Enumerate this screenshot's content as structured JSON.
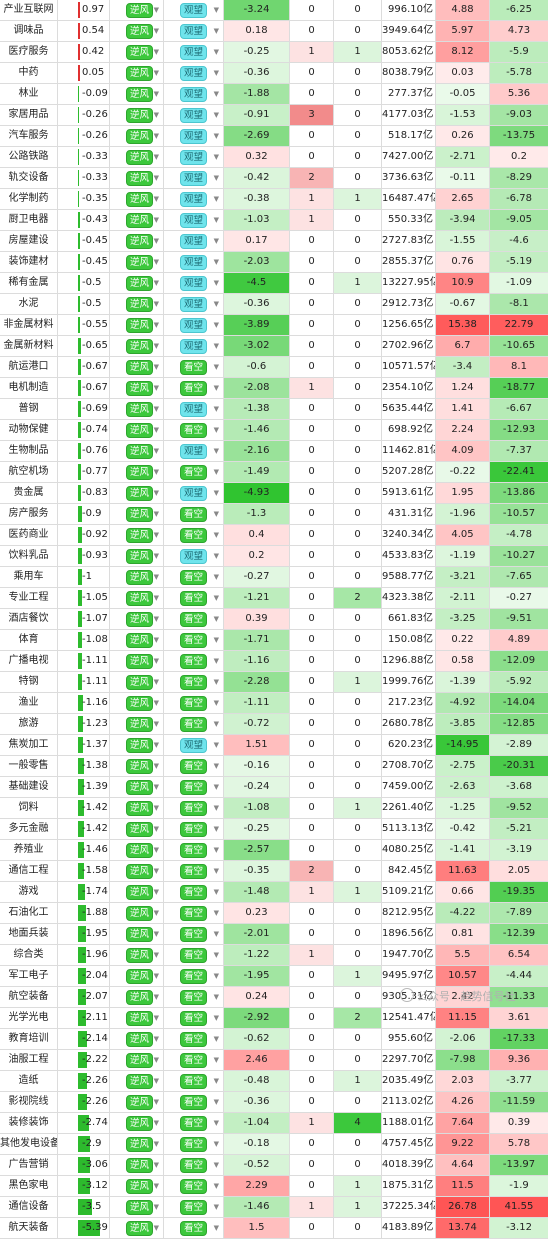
{
  "trend_label": "逆风",
  "sentiment_labels": {
    "wait": "观望",
    "bull": "看空"
  },
  "colors": {
    "up_red": "#f08080",
    "down_green": "#1ec81e",
    "bar_red": "#e03030",
    "bar_green": "#2dbb2d"
  },
  "watermark": "公众号 · 趋势信号社",
  "rows": [
    {
      "name": "产业互联网",
      "chg": "0.97",
      "sent": "wait",
      "net": "-3.24",
      "n1": "0",
      "n2": "0",
      "amt": "996.10亿",
      "p1": "4.88",
      "p2": "-6.25"
    },
    {
      "name": "调味品",
      "chg": "0.54",
      "sent": "wait",
      "net": "0.18",
      "n1": "0",
      "n2": "0",
      "amt": "3949.64亿",
      "p1": "5.97",
      "p2": "4.73"
    },
    {
      "name": "医疗服务",
      "chg": "0.42",
      "sent": "wait",
      "net": "-0.25",
      "n1": "1",
      "n2": "1",
      "amt": "8053.62亿",
      "p1": "8.12",
      "p2": "-5.9"
    },
    {
      "name": "中药",
      "chg": "0.05",
      "sent": "wait",
      "net": "-0.36",
      "n1": "0",
      "n2": "0",
      "amt": "8038.79亿",
      "p1": "0.03",
      "p2": "-5.78"
    },
    {
      "name": "林业",
      "chg": "-0.09",
      "sent": "wait",
      "net": "-1.88",
      "n1": "0",
      "n2": "0",
      "amt": "277.37亿",
      "p1": "-0.05",
      "p2": "5.36"
    },
    {
      "name": "家居用品",
      "chg": "-0.26",
      "sent": "wait",
      "net": "-0.91",
      "n1": "3",
      "n2": "0",
      "amt": "4177.03亿",
      "p1": "-1.53",
      "p2": "-9.03"
    },
    {
      "name": "汽车服务",
      "chg": "-0.26",
      "sent": "wait",
      "net": "-2.69",
      "n1": "0",
      "n2": "0",
      "amt": "518.17亿",
      "p1": "0.26",
      "p2": "-13.75"
    },
    {
      "name": "公路铁路",
      "chg": "-0.33",
      "sent": "wait",
      "net": "0.32",
      "n1": "0",
      "n2": "0",
      "amt": "7427.00亿",
      "p1": "-2.71",
      "p2": "0.2"
    },
    {
      "name": "轨交设备",
      "chg": "-0.33",
      "sent": "wait",
      "net": "-0.42",
      "n1": "2",
      "n2": "0",
      "amt": "3736.63亿",
      "p1": "-0.11",
      "p2": "-8.29"
    },
    {
      "name": "化学制药",
      "chg": "-0.35",
      "sent": "wait",
      "net": "-0.38",
      "n1": "1",
      "n2": "1",
      "amt": "16487.47亿",
      "p1": "2.65",
      "p2": "-6.78"
    },
    {
      "name": "厨卫电器",
      "chg": "-0.43",
      "sent": "wait",
      "net": "-1.03",
      "n1": "1",
      "n2": "0",
      "amt": "550.33亿",
      "p1": "-3.94",
      "p2": "-9.05"
    },
    {
      "name": "房屋建设",
      "chg": "-0.45",
      "sent": "wait",
      "net": "0.17",
      "n1": "0",
      "n2": "0",
      "amt": "2727.83亿",
      "p1": "-1.55",
      "p2": "-4.6"
    },
    {
      "name": "装饰建材",
      "chg": "-0.45",
      "sent": "wait",
      "net": "-2.03",
      "n1": "0",
      "n2": "0",
      "amt": "2855.37亿",
      "p1": "0.76",
      "p2": "-5.19"
    },
    {
      "name": "稀有金属",
      "chg": "-0.5",
      "sent": "wait",
      "net": "-4.5",
      "n1": "0",
      "n2": "1",
      "amt": "13227.95亿",
      "p1": "10.9",
      "p2": "-1.09"
    },
    {
      "name": "水泥",
      "chg": "-0.5",
      "sent": "wait",
      "net": "-0.36",
      "n1": "0",
      "n2": "0",
      "amt": "2912.73亿",
      "p1": "-0.67",
      "p2": "-8.1"
    },
    {
      "name": "非金属材料",
      "chg": "-0.55",
      "sent": "wait",
      "net": "-3.89",
      "n1": "0",
      "n2": "0",
      "amt": "1256.65亿",
      "p1": "15.38",
      "p2": "22.79"
    },
    {
      "name": "金属新材料",
      "chg": "-0.65",
      "sent": "wait",
      "net": "-3.02",
      "n1": "0",
      "n2": "0",
      "amt": "2702.96亿",
      "p1": "6.7",
      "p2": "-10.65"
    },
    {
      "name": "航运港口",
      "chg": "-0.67",
      "sent": "bull",
      "net": "-0.6",
      "n1": "0",
      "n2": "0",
      "amt": "10571.57亿",
      "p1": "-3.4",
      "p2": "8.1"
    },
    {
      "name": "电机制造",
      "chg": "-0.67",
      "sent": "bull",
      "net": "-2.08",
      "n1": "1",
      "n2": "0",
      "amt": "2354.10亿",
      "p1": "1.24",
      "p2": "-18.77"
    },
    {
      "name": "普钢",
      "chg": "-0.69",
      "sent": "wait",
      "net": "-1.38",
      "n1": "0",
      "n2": "0",
      "amt": "5635.44亿",
      "p1": "1.41",
      "p2": "-6.67"
    },
    {
      "name": "动物保健",
      "chg": "-0.74",
      "sent": "bull",
      "net": "-1.46",
      "n1": "0",
      "n2": "0",
      "amt": "698.92亿",
      "p1": "2.24",
      "p2": "-12.93"
    },
    {
      "name": "生物制品",
      "chg": "-0.76",
      "sent": "wait",
      "net": "-2.16",
      "n1": "0",
      "n2": "0",
      "amt": "11462.81亿",
      "p1": "4.09",
      "p2": "-7.37"
    },
    {
      "name": "航空机场",
      "chg": "-0.77",
      "sent": "bull",
      "net": "-1.49",
      "n1": "0",
      "n2": "0",
      "amt": "5207.28亿",
      "p1": "-0.22",
      "p2": "-22.41"
    },
    {
      "name": "贵金属",
      "chg": "-0.83",
      "sent": "wait",
      "net": "-4.93",
      "n1": "0",
      "n2": "0",
      "amt": "5913.61亿",
      "p1": "1.95",
      "p2": "-13.86"
    },
    {
      "name": "房产服务",
      "chg": "-0.9",
      "sent": "bull",
      "net": "-1.3",
      "n1": "0",
      "n2": "0",
      "amt": "431.31亿",
      "p1": "-1.96",
      "p2": "-10.57"
    },
    {
      "name": "医药商业",
      "chg": "-0.92",
      "sent": "bull",
      "net": "0.4",
      "n1": "0",
      "n2": "0",
      "amt": "3240.34亿",
      "p1": "4.05",
      "p2": "-4.78"
    },
    {
      "name": "饮料乳品",
      "chg": "-0.93",
      "sent": "wait",
      "net": "0.2",
      "n1": "0",
      "n2": "0",
      "amt": "4533.83亿",
      "p1": "-1.19",
      "p2": "-10.27"
    },
    {
      "name": "乘用车",
      "chg": "-1",
      "sent": "bull",
      "net": "-0.27",
      "n1": "0",
      "n2": "0",
      "amt": "9588.77亿",
      "p1": "-3.21",
      "p2": "-7.65"
    },
    {
      "name": "专业工程",
      "chg": "-1.05",
      "sent": "bull",
      "net": "-1.21",
      "n1": "0",
      "n2": "2",
      "amt": "4323.38亿",
      "p1": "-2.11",
      "p2": "-0.27"
    },
    {
      "name": "酒店餐饮",
      "chg": "-1.07",
      "sent": "bull",
      "net": "0.39",
      "n1": "0",
      "n2": "0",
      "amt": "661.83亿",
      "p1": "-3.25",
      "p2": "-9.51"
    },
    {
      "name": "体育",
      "chg": "-1.08",
      "sent": "bull",
      "net": "-1.71",
      "n1": "0",
      "n2": "0",
      "amt": "150.08亿",
      "p1": "0.22",
      "p2": "4.89"
    },
    {
      "name": "广播电视",
      "chg": "-1.11",
      "sent": "bull",
      "net": "-1.16",
      "n1": "0",
      "n2": "0",
      "amt": "1296.88亿",
      "p1": "0.58",
      "p2": "-12.09"
    },
    {
      "name": "特钢",
      "chg": "-1.11",
      "sent": "bull",
      "net": "-2.28",
      "n1": "0",
      "n2": "1",
      "amt": "1999.76亿",
      "p1": "-1.39",
      "p2": "-5.92"
    },
    {
      "name": "渔业",
      "chg": "-1.16",
      "sent": "bull",
      "net": "-1.11",
      "n1": "0",
      "n2": "0",
      "amt": "217.23亿",
      "p1": "-4.92",
      "p2": "-14.04"
    },
    {
      "name": "旅游",
      "chg": "-1.23",
      "sent": "bull",
      "net": "-0.72",
      "n1": "0",
      "n2": "0",
      "amt": "2680.78亿",
      "p1": "-3.85",
      "p2": "-12.85"
    },
    {
      "name": "焦炭加工",
      "chg": "-1.37",
      "sent": "wait",
      "net": "1.51",
      "n1": "0",
      "n2": "0",
      "amt": "620.23亿",
      "p1": "-14.95",
      "p2": "-2.89"
    },
    {
      "name": "一般零售",
      "chg": "-1.38",
      "sent": "bull",
      "net": "-0.16",
      "n1": "0",
      "n2": "0",
      "amt": "2708.70亿",
      "p1": "-2.75",
      "p2": "-20.31"
    },
    {
      "name": "基础建设",
      "chg": "-1.39",
      "sent": "bull",
      "net": "-0.24",
      "n1": "0",
      "n2": "0",
      "amt": "7459.00亿",
      "p1": "-2.63",
      "p2": "-3.68"
    },
    {
      "name": "饲料",
      "chg": "-1.42",
      "sent": "bull",
      "net": "-1.08",
      "n1": "0",
      "n2": "1",
      "amt": "2261.40亿",
      "p1": "-1.25",
      "p2": "-9.52"
    },
    {
      "name": "多元金融",
      "chg": "-1.42",
      "sent": "bull",
      "net": "-0.25",
      "n1": "0",
      "n2": "0",
      "amt": "5113.13亿",
      "p1": "-0.42",
      "p2": "-5.21"
    },
    {
      "name": "养殖业",
      "chg": "-1.46",
      "sent": "bull",
      "net": "-2.57",
      "n1": "0",
      "n2": "0",
      "amt": "4080.25亿",
      "p1": "-1.41",
      "p2": "-3.19"
    },
    {
      "name": "通信工程",
      "chg": "-1.58",
      "sent": "bull",
      "net": "-0.35",
      "n1": "2",
      "n2": "0",
      "amt": "842.45亿",
      "p1": "11.63",
      "p2": "2.05"
    },
    {
      "name": "游戏",
      "chg": "-1.74",
      "sent": "bull",
      "net": "-1.48",
      "n1": "1",
      "n2": "1",
      "amt": "5109.21亿",
      "p1": "0.66",
      "p2": "-19.35"
    },
    {
      "name": "石油化工",
      "chg": "-1.88",
      "sent": "bull",
      "net": "0.23",
      "n1": "0",
      "n2": "0",
      "amt": "8212.95亿",
      "p1": "-4.22",
      "p2": "-7.89"
    },
    {
      "name": "地面兵装",
      "chg": "-1.95",
      "sent": "bull",
      "net": "-2.01",
      "n1": "0",
      "n2": "0",
      "amt": "1896.56亿",
      "p1": "0.81",
      "p2": "-12.39"
    },
    {
      "name": "综合类",
      "chg": "-1.96",
      "sent": "bull",
      "net": "-1.22",
      "n1": "1",
      "n2": "0",
      "amt": "1947.70亿",
      "p1": "5.5",
      "p2": "6.54"
    },
    {
      "name": "军工电子",
      "chg": "-2.04",
      "sent": "bull",
      "net": "-1.95",
      "n1": "0",
      "n2": "1",
      "amt": "9495.97亿",
      "p1": "10.57",
      "p2": "-4.44"
    },
    {
      "name": "航空装备",
      "chg": "-2.07",
      "sent": "bull",
      "net": "0.24",
      "n1": "0",
      "n2": "0",
      "amt": "9305.31亿",
      "p1": "2.42",
      "p2": "-11.33"
    },
    {
      "name": "光学光电",
      "chg": "-2.11",
      "sent": "bull",
      "net": "-2.92",
      "n1": "0",
      "n2": "2",
      "amt": "12541.47亿",
      "p1": "11.15",
      "p2": "3.61"
    },
    {
      "name": "教育培训",
      "chg": "-2.14",
      "sent": "bull",
      "net": "-0.62",
      "n1": "0",
      "n2": "0",
      "amt": "955.60亿",
      "p1": "-2.06",
      "p2": "-17.33"
    },
    {
      "name": "油服工程",
      "chg": "-2.22",
      "sent": "bull",
      "net": "2.46",
      "n1": "0",
      "n2": "0",
      "amt": "2297.70亿",
      "p1": "-7.98",
      "p2": "9.36"
    },
    {
      "name": "造纸",
      "chg": "-2.26",
      "sent": "bull",
      "net": "-0.48",
      "n1": "0",
      "n2": "1",
      "amt": "2035.49亿",
      "p1": "2.03",
      "p2": "-3.77"
    },
    {
      "name": "影视院线",
      "chg": "-2.26",
      "sent": "bull",
      "net": "-0.36",
      "n1": "0",
      "n2": "0",
      "amt": "2113.02亿",
      "p1": "4.26",
      "p2": "-11.59"
    },
    {
      "name": "装修装饰",
      "chg": "-2.74",
      "sent": "bull",
      "net": "-1.04",
      "n1": "1",
      "n2": "4",
      "amt": "1188.01亿",
      "p1": "7.64",
      "p2": "0.39"
    },
    {
      "name": "其他发电设备",
      "chg": "-2.9",
      "sent": "bull",
      "net": "-0.18",
      "n1": "0",
      "n2": "0",
      "amt": "4757.45亿",
      "p1": "9.22",
      "p2": "5.78"
    },
    {
      "name": "广告营销",
      "chg": "-3.06",
      "sent": "bull",
      "net": "-0.52",
      "n1": "0",
      "n2": "0",
      "amt": "4018.39亿",
      "p1": "4.64",
      "p2": "-13.97"
    },
    {
      "name": "黑色家电",
      "chg": "-3.12",
      "sent": "bull",
      "net": "2.29",
      "n1": "0",
      "n2": "1",
      "amt": "1875.31亿",
      "p1": "11.5",
      "p2": "-1.9"
    },
    {
      "name": "通信设备",
      "chg": "-3.5",
      "sent": "bull",
      "net": "-1.46",
      "n1": "1",
      "n2": "1",
      "amt": "37225.34亿",
      "p1": "26.78",
      "p2": "41.55"
    },
    {
      "name": "航天装备",
      "chg": "-5.39",
      "sent": "bull",
      "net": "1.5",
      "n1": "0",
      "n2": "0",
      "amt": "4183.89亿",
      "p1": "13.74",
      "p2": "-3.12"
    }
  ]
}
